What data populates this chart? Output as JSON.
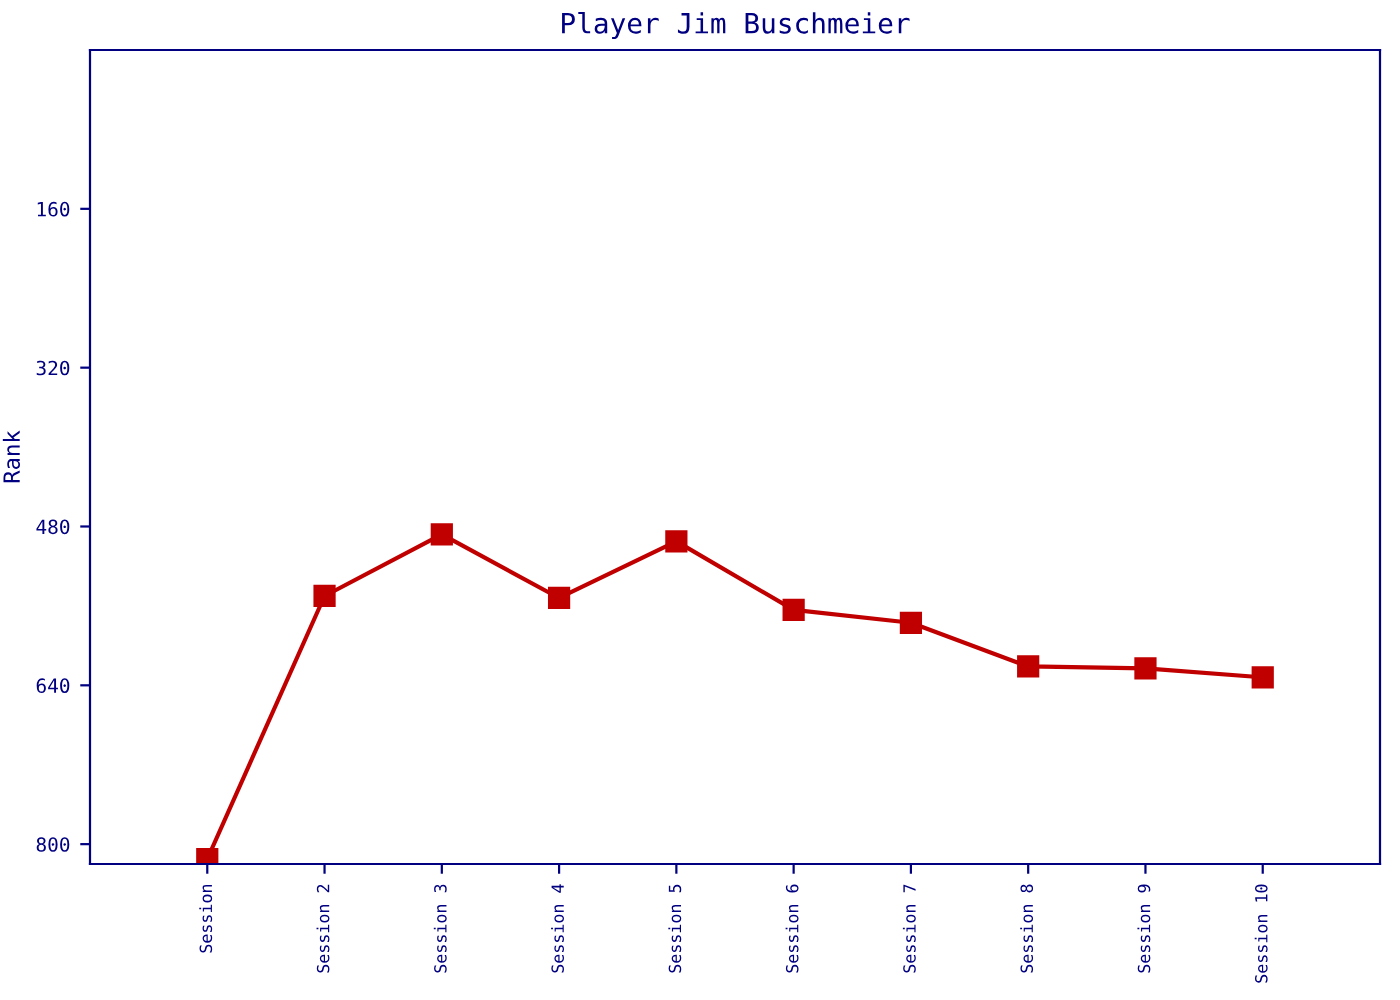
{
  "chart_data": {
    "type": "line",
    "title": "Player Jim Buschmeier",
    "ylabel": "Rank",
    "categories": [
      "Session",
      "Session 2",
      "Session 3",
      "Session 4",
      "Session 5",
      "Session 6",
      "Session 7",
      "Session 8",
      "Session 9",
      "Session 10"
    ],
    "series": [
      {
        "color": "#c00000",
        "values": [
          815,
          550,
          488,
          552,
          495,
          564,
          577,
          621,
          623,
          632
        ]
      }
    ],
    "ylim": [
      820,
      0
    ],
    "yticks": [
      160,
      320,
      480,
      640,
      800
    ],
    "grid": false,
    "legend": false,
    "marker": "square",
    "line_style": "solid"
  }
}
